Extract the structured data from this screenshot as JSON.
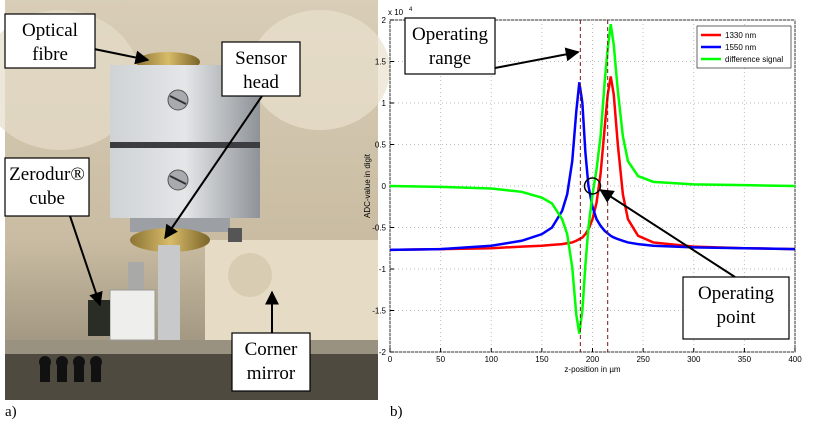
{
  "panel_a": {
    "panel_label": "a)",
    "labels": [
      {
        "lines": [
          "Optical",
          "fibre"
        ]
      },
      {
        "lines": [
          "Sensor",
          "head"
        ]
      },
      {
        "lines": [
          "Zerodur®",
          "cube"
        ]
      },
      {
        "lines": [
          "Corner",
          "mirror"
        ]
      }
    ]
  },
  "chart_data": {
    "type": "line",
    "panel_label": "b)",
    "x_label": "z-position in µm",
    "y_label": "ADC-value in digit",
    "y_multiplier": "x 10",
    "y_multiplier_exp": "4",
    "x": [
      0,
      50,
      100,
      130,
      150,
      160,
      170,
      175,
      180,
      184,
      187,
      190,
      193,
      196,
      200,
      204,
      208,
      212,
      215,
      218,
      221,
      225,
      230,
      235,
      245,
      260,
      300,
      350,
      400
    ],
    "series": [
      {
        "name": "1330 nm",
        "color": "#ff0000",
        "values": [
          -0.77,
          -0.76,
          -0.75,
          -0.73,
          -0.72,
          -0.71,
          -0.7,
          -0.69,
          -0.68,
          -0.66,
          -0.64,
          -0.62,
          -0.58,
          -0.52,
          -0.4,
          -0.2,
          0.15,
          0.7,
          1.1,
          1.32,
          1.1,
          0.5,
          -0.1,
          -0.4,
          -0.6,
          -0.68,
          -0.73,
          -0.75,
          -0.76
        ]
      },
      {
        "name": "1550 nm",
        "color": "#0000ff",
        "values": [
          -0.77,
          -0.76,
          -0.72,
          -0.66,
          -0.58,
          -0.5,
          -0.3,
          -0.1,
          0.3,
          0.9,
          1.25,
          1.0,
          0.4,
          0.0,
          -0.25,
          -0.4,
          -0.48,
          -0.54,
          -0.57,
          -0.6,
          -0.62,
          -0.64,
          -0.66,
          -0.68,
          -0.7,
          -0.72,
          -0.74,
          -0.75,
          -0.76
        ]
      },
      {
        "name": "difference signal",
        "color": "#00ff00",
        "values": [
          0,
          -0.01,
          -0.03,
          -0.07,
          -0.14,
          -0.21,
          -0.4,
          -0.58,
          -0.98,
          -1.55,
          -1.78,
          -1.5,
          -0.95,
          -0.5,
          -0.1,
          0.2,
          0.6,
          1.25,
          1.65,
          1.95,
          1.7,
          1.15,
          0.6,
          0.3,
          0.12,
          0.05,
          0.02,
          0.01,
          0
        ]
      }
    ],
    "xlim": [
      0,
      400
    ],
    "xticks": [
      0,
      50,
      100,
      150,
      200,
      250,
      300,
      350,
      400
    ],
    "ylim": [
      -2,
      2
    ],
    "yticks": [
      -2,
      -1.5,
      -1,
      -0.5,
      0,
      0.5,
      1,
      1.5,
      2
    ],
    "grid": true,
    "legend": "upper right",
    "range_lines": [
      188,
      215
    ],
    "range_label": [
      "Operating",
      "range"
    ],
    "operating_point": [
      200,
      0
    ],
    "point_label": [
      "Operating",
      "point"
    ]
  }
}
